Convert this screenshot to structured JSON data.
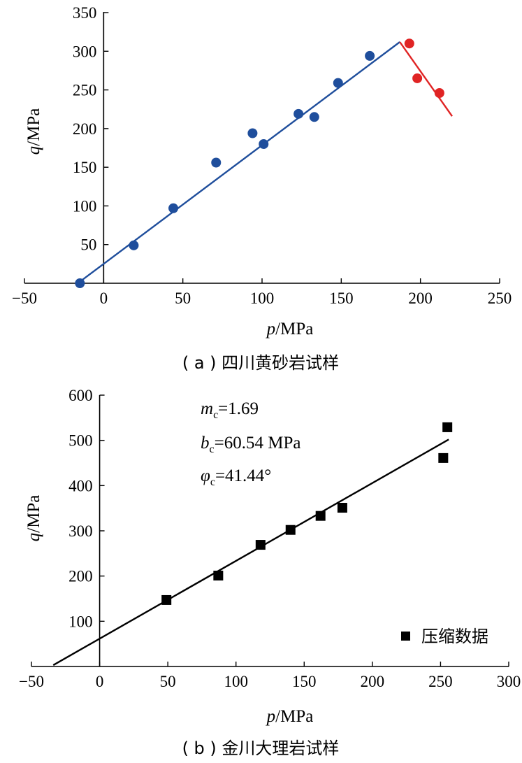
{
  "figure": {
    "charts": [
      {
        "caption_prefix": "( a )",
        "caption_text": "四川黄砂岩试样",
        "xlabel_var": "p",
        "xlabel_unit": "/MPa",
        "ylabel_var": "q",
        "ylabel_unit": "/MPa",
        "x_ticks": [
          "−50",
          "0",
          "50",
          "100",
          "150",
          "200",
          "250"
        ],
        "y_ticks": [
          "50",
          "100",
          "150",
          "200",
          "250",
          "300",
          "350"
        ]
      },
      {
        "caption_prefix": "( b )",
        "caption_text": "金川大理岩试样",
        "xlabel_var": "p",
        "xlabel_unit": "/MPa",
        "ylabel_var": "q",
        "ylabel_unit": "/MPa",
        "x_ticks": [
          "−50",
          "0",
          "50",
          "100",
          "150",
          "200",
          "250",
          "300"
        ],
        "y_ticks": [
          "100",
          "200",
          "300",
          "400",
          "500",
          "600"
        ],
        "annotations": {
          "m_var": "m",
          "m_sub": "c",
          "m_value": "=1.69",
          "b_var": "b",
          "b_sub": "c",
          "b_value": "=60.54 MPa",
          "phi_var": "φ",
          "phi_sub": "c",
          "phi_value": "=41.44°"
        },
        "legend": {
          "label": "压缩数据"
        }
      }
    ]
  },
  "chart_data": [
    {
      "type": "scatter",
      "title": "( a ) 四川黄砂岩试样",
      "xlabel": "p/MPa",
      "ylabel": "q/MPa",
      "xlim": [
        -50,
        250
      ],
      "ylim": [
        0,
        350
      ],
      "x_axis_crosses_y_at": 0,
      "y_axis_crosses_x_at": 0,
      "grid": false,
      "series": [
        {
          "color": "#1f4e9c",
          "marker": "circle",
          "x": [
            -15,
            19,
            44,
            71,
            94,
            101,
            123,
            133,
            148,
            168
          ],
          "y": [
            0,
            49,
            97,
            156,
            194,
            180,
            219,
            215,
            259,
            294
          ]
        },
        {
          "color": "#e02424",
          "marker": "circle",
          "x": [
            193,
            198,
            212
          ],
          "y": [
            310,
            265,
            246
          ]
        }
      ],
      "fit_lines": [
        {
          "color": "#1f4e9c",
          "x": [
            -15,
            187
          ],
          "y": [
            2,
            312
          ]
        },
        {
          "color": "#e02424",
          "x": [
            187,
            220
          ],
          "y": [
            312,
            216
          ]
        }
      ]
    },
    {
      "type": "scatter",
      "title": "( b ) 金川大理岩试样",
      "xlabel": "p/MPa",
      "ylabel": "q/MPa",
      "xlim": [
        -50,
        300
      ],
      "ylim": [
        0,
        600
      ],
      "x_axis_crosses_y_at": 0,
      "y_axis_crosses_x_at": 0,
      "grid": false,
      "legend_position": "bottom-right",
      "series": [
        {
          "name": "压缩数据",
          "color": "#000000",
          "marker": "square",
          "x": [
            49,
            87,
            118,
            140,
            162,
            178,
            252,
            255
          ],
          "y": [
            147,
            201,
            269,
            302,
            333,
            351,
            461,
            529
          ]
        }
      ],
      "fit_lines": [
        {
          "color": "#000000",
          "x": [
            -34,
            256
          ],
          "y": [
            3,
            502
          ]
        }
      ]
    }
  ]
}
